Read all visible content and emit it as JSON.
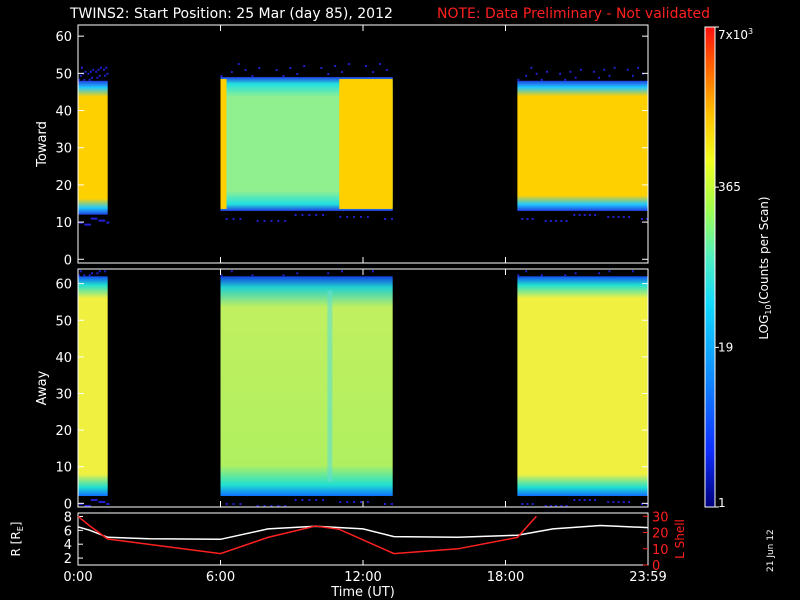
{
  "title": {
    "main": "TWINS2: Start Position: 25 Mar (day  85), 2012",
    "note": "NOTE: Data Preliminary - Not validated"
  },
  "colors": {
    "note": "#ff2020",
    "l_shell": "#ff2020",
    "r_line": "#ffffff",
    "background": "#000000"
  },
  "colorbar": {
    "label": "LOG10(Counts per Scan)",
    "label_base": "LOG",
    "label_sub": "10",
    "label_rest": "(Counts per Scan)",
    "ticks": [
      {
        "label": "7x10",
        "sup": "3",
        "value": 7000
      },
      {
        "label": "365",
        "value": 365
      },
      {
        "label": "19",
        "value": 19
      },
      {
        "label": "1",
        "value": 1
      }
    ],
    "scale": "log"
  },
  "date_stamp": "21 Jun 12",
  "chart_data": [
    {
      "type": "heatmap",
      "panel": "toward",
      "ylabel": "Toward",
      "ylim": [
        -1,
        63
      ],
      "yticks": [
        0,
        10,
        20,
        30,
        40,
        50,
        60
      ],
      "xlim_hours": [
        0,
        24
      ],
      "segments": [
        {
          "start": "0:00",
          "end": "1:15",
          "start_h": 0.0,
          "end_h": 1.25,
          "band": [
            12,
            48
          ]
        },
        {
          "start": "6:00",
          "end": "13:15",
          "start_h": 6.0,
          "end_h": 13.25,
          "band": [
            13,
            49
          ]
        },
        {
          "start": "18:30",
          "end": "23:59",
          "start_h": 18.5,
          "end_h": 23.98,
          "band": [
            13,
            48
          ]
        }
      ]
    },
    {
      "type": "heatmap",
      "panel": "away",
      "ylabel": "Away",
      "ylim": [
        -1,
        64
      ],
      "yticks": [
        0,
        10,
        20,
        30,
        40,
        50,
        60
      ],
      "xlim_hours": [
        0,
        24
      ],
      "segments": [
        {
          "start": "0:00",
          "end": "1:15",
          "start_h": 0.0,
          "end_h": 1.25,
          "band": [
            2,
            62
          ]
        },
        {
          "start": "6:00",
          "end": "13:15",
          "start_h": 6.0,
          "end_h": 13.25,
          "band": [
            2,
            62
          ]
        },
        {
          "start": "18:30",
          "end": "23:59",
          "start_h": 18.5,
          "end_h": 23.98,
          "band": [
            2,
            62
          ]
        }
      ]
    },
    {
      "type": "line",
      "panel": "ephemeris",
      "xlabel": "Time (UT)",
      "xticks": [
        "0:00",
        "6:00",
        "12:00",
        "18:00",
        "23:59"
      ],
      "xtick_hours": [
        0,
        6,
        12,
        18,
        24
      ],
      "ylabel_left": "R [RE]",
      "ylabel_left_base": "R [R",
      "ylabel_left_sub": "E",
      "ylabel_left_end": "]",
      "yticks_left": [
        2,
        4,
        6,
        8
      ],
      "ylim_left": [
        1,
        8.5
      ],
      "ylabel_right": "L Shell",
      "yticks_right": [
        0,
        10,
        20,
        30
      ],
      "ylim_right": [
        0,
        32
      ],
      "series": [
        {
          "name": "R [RE]",
          "axis": "left",
          "x": [
            0,
            0.5,
            1.25,
            3,
            6,
            8,
            10,
            12,
            13.3,
            16,
            18.5,
            20,
            22,
            24
          ],
          "y": [
            6.5,
            6,
            5,
            4.8,
            4.7,
            6.2,
            6.6,
            6.2,
            5.1,
            5.0,
            5.3,
            6.2,
            6.7,
            6.4
          ]
        },
        {
          "name": "L Shell",
          "axis": "right",
          "x": [
            0,
            0.5,
            1.25,
            6,
            8,
            10,
            11,
            13.3,
            16,
            18.5,
            19.3
          ],
          "y": [
            30,
            24,
            16,
            7,
            17,
            24,
            22,
            7,
            10,
            17,
            30
          ]
        }
      ]
    }
  ]
}
